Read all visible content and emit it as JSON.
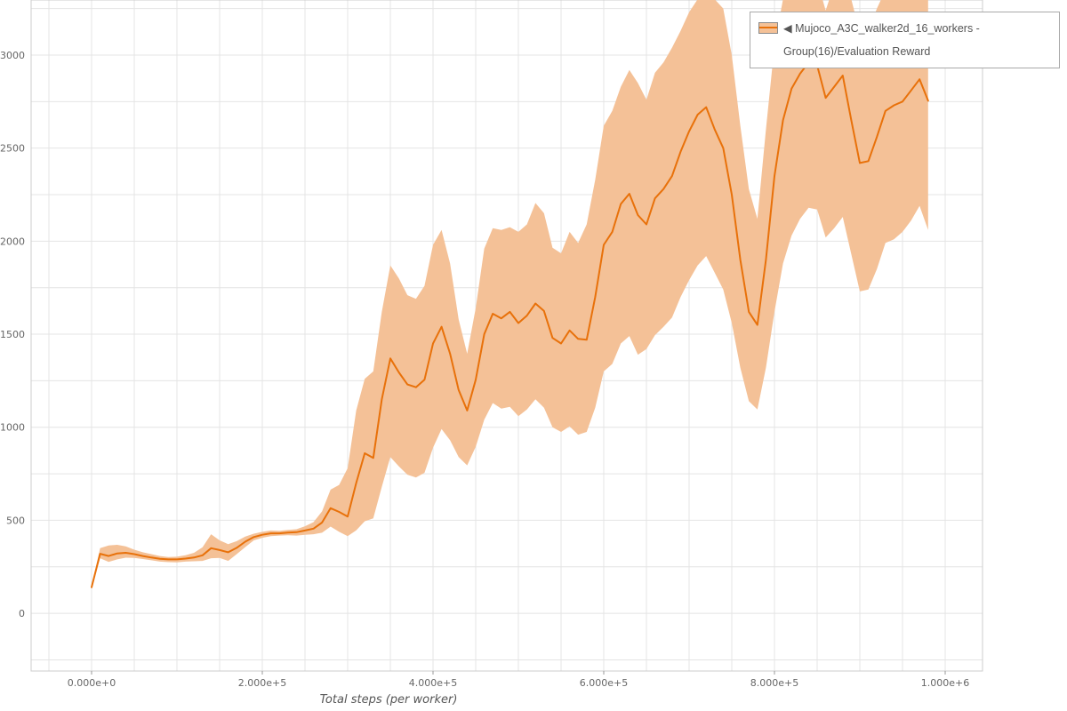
{
  "legend": {
    "label": "◀ Mujoco_A3C_walker2d_16_workers - Group(16)/Evaluation Reward"
  },
  "chart_data": {
    "type": "line",
    "title": "",
    "xlabel": "Total steps (per worker)",
    "ylabel": "",
    "xlim": [
      -70833,
      1043750
    ],
    "ylim": [
      -310,
      3296
    ],
    "grid": {
      "show": true,
      "x_step": 50000,
      "y_step": 250,
      "color": "#e4e4e4",
      "border_color": "#cccccc"
    },
    "legend_position": "top-right",
    "x_ticks": [
      {
        "value": 0,
        "label": "0.000e+0"
      },
      {
        "value": 200000,
        "label": "2.000e+5"
      },
      {
        "value": 400000,
        "label": "4.000e+5"
      },
      {
        "value": 600000,
        "label": "6.000e+5"
      },
      {
        "value": 800000,
        "label": "8.000e+5"
      },
      {
        "value": 1000000,
        "label": "1.000e+6"
      }
    ],
    "y_ticks": [
      {
        "value": 0,
        "label": "0"
      },
      {
        "value": 500,
        "label": "500"
      },
      {
        "value": 1000,
        "label": "1000"
      },
      {
        "value": 1500,
        "label": "1500"
      },
      {
        "value": 2000,
        "label": "2000"
      },
      {
        "value": 2500,
        "label": "2500"
      },
      {
        "value": 3000,
        "label": "3000"
      }
    ],
    "tick_color": "#666666",
    "series": [
      {
        "name": "Mujoco_A3C_walker2d_16_workers - Group(16)/Evaluation Reward",
        "color": "#e8710a",
        "band_color": "#f4c197",
        "x": [
          0,
          10000,
          20000,
          30000,
          40000,
          50000,
          60000,
          70000,
          80000,
          90000,
          100000,
          110000,
          120000,
          130000,
          140000,
          150000,
          160000,
          170000,
          180000,
          190000,
          200000,
          210000,
          220000,
          230000,
          240000,
          250000,
          260000,
          270000,
          280000,
          290000,
          300000,
          310000,
          320000,
          330000,
          340000,
          350000,
          360000,
          370000,
          380000,
          390000,
          400000,
          410000,
          420000,
          430000,
          440000,
          450000,
          460000,
          470000,
          480000,
          490000,
          500000,
          510000,
          520000,
          530000,
          540000,
          550000,
          560000,
          570000,
          580000,
          590000,
          600000,
          610000,
          620000,
          630000,
          640000,
          650000,
          660000,
          670000,
          680000,
          690000,
          700000,
          710000,
          720000,
          730000,
          740000,
          750000,
          760000,
          770000,
          780000,
          790000,
          800000,
          810000,
          820000,
          830000,
          840000,
          850000,
          860000,
          870000,
          880000,
          890000,
          900000,
          910000,
          920000,
          930000,
          940000,
          950000,
          960000,
          970000,
          980000
        ],
        "mean": [
          140,
          320,
          308,
          322,
          325,
          318,
          308,
          300,
          293,
          290,
          290,
          294,
          300,
          312,
          350,
          340,
          328,
          352,
          385,
          410,
          422,
          430,
          430,
          434,
          436,
          445,
          455,
          488,
          565,
          545,
          520,
          700,
          860,
          835,
          1150,
          1370,
          1295,
          1230,
          1215,
          1255,
          1450,
          1540,
          1395,
          1200,
          1090,
          1255,
          1500,
          1610,
          1585,
          1620,
          1560,
          1600,
          1665,
          1625,
          1480,
          1450,
          1520,
          1475,
          1470,
          1700,
          1980,
          2050,
          2200,
          2255,
          2140,
          2090,
          2230,
          2280,
          2350,
          2480,
          2590,
          2680,
          2720,
          2600,
          2500,
          2250,
          1900,
          1620,
          1550,
          1900,
          2350,
          2650,
          2820,
          2900,
          2960,
          2945,
          2770,
          2830,
          2890,
          2650,
          2420,
          2430,
          2560,
          2700,
          2730,
          2750,
          2810,
          2870,
          2755
        ],
        "lower": [
          135,
          296,
          276,
          290,
          299,
          298,
          292,
          285,
          278,
          275,
          274,
          278,
          280,
          282,
          296,
          298,
          282,
          318,
          356,
          392,
          406,
          415,
          418,
          420,
          418,
          422,
          425,
          433,
          466,
          438,
          415,
          446,
          495,
          510,
          680,
          840,
          790,
          745,
          730,
          755,
          890,
          990,
          930,
          840,
          795,
          895,
          1040,
          1130,
          1100,
          1110,
          1060,
          1095,
          1150,
          1105,
          1000,
          975,
          1005,
          960,
          975,
          1105,
          1300,
          1340,
          1450,
          1490,
          1390,
          1420,
          1495,
          1540,
          1590,
          1700,
          1790,
          1870,
          1920,
          1830,
          1740,
          1560,
          1320,
          1140,
          1095,
          1320,
          1620,
          1880,
          2030,
          2120,
          2180,
          2170,
          2020,
          2070,
          2130,
          1930,
          1730,
          1740,
          1850,
          1990,
          2010,
          2050,
          2110,
          2190,
          2060
        ],
        "upper": [
          148,
          350,
          365,
          368,
          360,
          342,
          328,
          318,
          308,
          303,
          304,
          312,
          325,
          355,
          425,
          392,
          372,
          388,
          412,
          428,
          438,
          445,
          443,
          448,
          452,
          468,
          490,
          548,
          665,
          690,
          780,
          1090,
          1260,
          1300,
          1620,
          1870,
          1800,
          1710,
          1690,
          1760,
          1980,
          2060,
          1880,
          1580,
          1395,
          1640,
          1960,
          2070,
          2060,
          2075,
          2050,
          2090,
          2205,
          2150,
          1965,
          1935,
          2050,
          1990,
          2090,
          2330,
          2620,
          2700,
          2830,
          2920,
          2850,
          2760,
          2905,
          2960,
          3040,
          3130,
          3230,
          3300,
          3350,
          3300,
          3250,
          3000,
          2620,
          2280,
          2120,
          2600,
          3050,
          3300,
          3400,
          3400,
          3400,
          3400,
          3240,
          3380,
          3400,
          3300,
          3120,
          3130,
          3250,
          3350,
          3380,
          3400,
          3400,
          3400,
          3400
        ]
      }
    ]
  }
}
